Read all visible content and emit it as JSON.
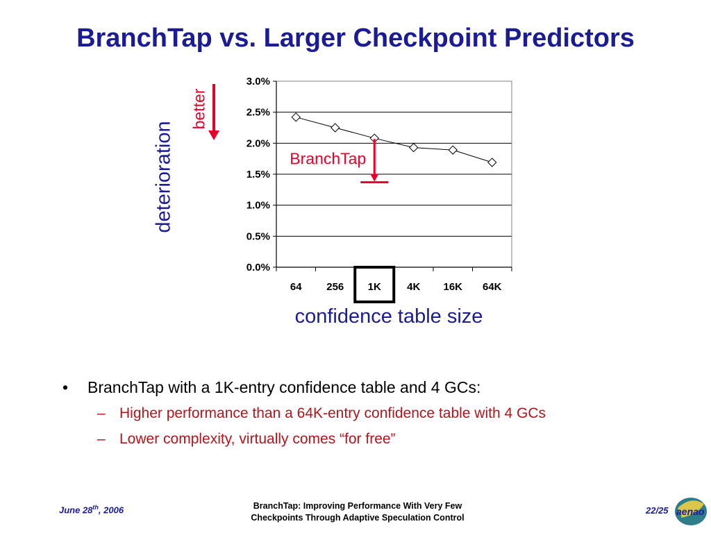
{
  "slide": {
    "title": "BranchTap vs. Larger Checkpoint Predictors",
    "annotation_better": "better",
    "annotation_branchtap": "BranchTap",
    "bullets": {
      "main": "BranchTap with a 1K-entry confidence table and 4 GCs:",
      "sub1": "Higher performance than a 64K-entry confidence table with 4 GCs",
      "sub2": "Lower complexity, virtually comes “for free”",
      "bullet_glyph": "•",
      "dash_glyph": "–"
    },
    "footer": {
      "date_main": "June 28",
      "date_sup": "th",
      "date_year": ", 2006",
      "paper_line1": "BranchTap: Improving Performance With Very Few",
      "paper_line2": "Checkpoints Through Adaptive Speculation Control",
      "page": "22/25",
      "logo_text": "aenao"
    },
    "colors": {
      "title": "#1b1b96",
      "accent_red": "#e8002a",
      "sub_bullet": "#b0161e"
    }
  },
  "chart_data": {
    "type": "line",
    "categories": [
      "64",
      "256",
      "1K",
      "4K",
      "16K",
      "64K"
    ],
    "values": [
      2.42,
      2.25,
      2.08,
      1.93,
      1.89,
      1.69
    ],
    "xlabel": "confidence table size",
    "ylabel": "deterioration",
    "ylim": [
      0,
      3.0
    ],
    "yticks": [
      "0.0%",
      "0.5%",
      "1.0%",
      "1.5%",
      "2.0%",
      "2.5%",
      "3.0%"
    ],
    "ytick_values": [
      0,
      0.5,
      1.0,
      1.5,
      2.0,
      2.5,
      3.0
    ],
    "grid": true,
    "marker": "diamond",
    "highlighted_category": "1K",
    "branchtap_value": 1.37
  }
}
